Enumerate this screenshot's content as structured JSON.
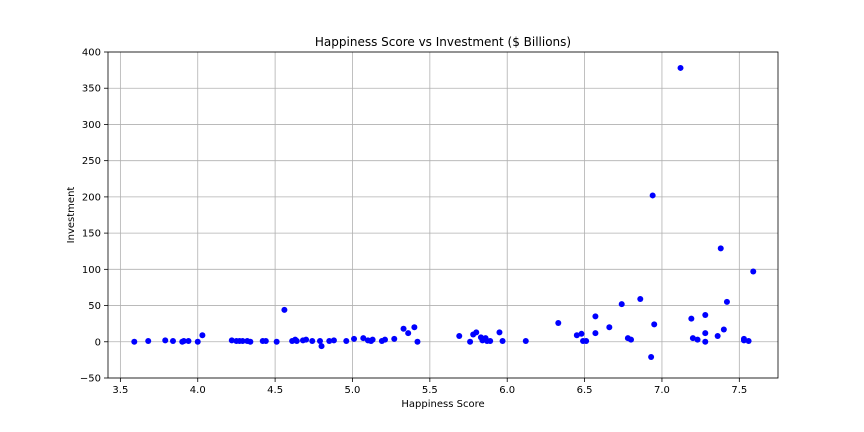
{
  "chart_data": {
    "type": "scatter",
    "title": "Happiness Score vs Investment ($ Billions)",
    "xlabel": "Happiness Score",
    "ylabel": "Investment",
    "xlim": [
      3.42,
      7.75
    ],
    "ylim": [
      -50,
      400
    ],
    "xticks": [
      3.5,
      4.0,
      4.5,
      5.0,
      5.5,
      6.0,
      6.5,
      7.0,
      7.5
    ],
    "xtick_labels": [
      "3.5",
      "4.0",
      "4.5",
      "5.0",
      "5.5",
      "6.0",
      "6.5",
      "7.0",
      "7.5"
    ],
    "yticks": [
      -50,
      0,
      50,
      100,
      150,
      200,
      250,
      300,
      350,
      400
    ],
    "ytick_labels": [
      "−50",
      "0",
      "50",
      "100",
      "150",
      "200",
      "250",
      "300",
      "350",
      "400"
    ],
    "grid": true,
    "marker_color": "#0000ff",
    "points": [
      [
        3.59,
        0
      ],
      [
        3.68,
        1
      ],
      [
        3.79,
        2
      ],
      [
        3.84,
        1
      ],
      [
        3.9,
        0
      ],
      [
        3.91,
        1
      ],
      [
        3.94,
        1
      ],
      [
        4.0,
        0
      ],
      [
        4.03,
        9
      ],
      [
        4.22,
        2
      ],
      [
        4.25,
        1
      ],
      [
        4.27,
        1
      ],
      [
        4.29,
        1
      ],
      [
        4.32,
        1
      ],
      [
        4.34,
        0
      ],
      [
        4.42,
        1
      ],
      [
        4.44,
        1
      ],
      [
        4.51,
        0
      ],
      [
        4.56,
        44
      ],
      [
        4.61,
        1
      ],
      [
        4.63,
        3
      ],
      [
        4.64,
        1
      ],
      [
        4.68,
        2
      ],
      [
        4.7,
        3
      ],
      [
        4.74,
        1
      ],
      [
        4.79,
        1
      ],
      [
        4.8,
        -6
      ],
      [
        4.85,
        1
      ],
      [
        4.88,
        2
      ],
      [
        4.96,
        1
      ],
      [
        5.01,
        4
      ],
      [
        5.07,
        5
      ],
      [
        5.1,
        2
      ],
      [
        5.12,
        1
      ],
      [
        5.13,
        3
      ],
      [
        5.19,
        1
      ],
      [
        5.21,
        3
      ],
      [
        5.27,
        4
      ],
      [
        5.33,
        18
      ],
      [
        5.36,
        12
      ],
      [
        5.4,
        20
      ],
      [
        5.42,
        0
      ],
      [
        5.69,
        8
      ],
      [
        5.76,
        0
      ],
      [
        5.78,
        10
      ],
      [
        5.8,
        13
      ],
      [
        5.83,
        6
      ],
      [
        5.84,
        2
      ],
      [
        5.86,
        5
      ],
      [
        5.87,
        1
      ],
      [
        5.89,
        1
      ],
      [
        5.95,
        13
      ],
      [
        5.97,
        1
      ],
      [
        6.12,
        1
      ],
      [
        6.33,
        26
      ],
      [
        6.45,
        9
      ],
      [
        6.48,
        11
      ],
      [
        6.49,
        1
      ],
      [
        6.51,
        1
      ],
      [
        6.57,
        35
      ],
      [
        6.57,
        12
      ],
      [
        6.66,
        20
      ],
      [
        6.74,
        52
      ],
      [
        6.78,
        5
      ],
      [
        6.8,
        3
      ],
      [
        6.86,
        59
      ],
      [
        6.93,
        -21
      ],
      [
        6.94,
        202
      ],
      [
        6.95,
        24
      ],
      [
        7.12,
        378
      ],
      [
        7.19,
        32
      ],
      [
        7.2,
        5
      ],
      [
        7.23,
        3
      ],
      [
        7.28,
        37
      ],
      [
        7.28,
        12
      ],
      [
        7.28,
        0
      ],
      [
        7.36,
        8
      ],
      [
        7.38,
        129
      ],
      [
        7.4,
        17
      ],
      [
        7.42,
        55
      ],
      [
        7.53,
        4
      ],
      [
        7.53,
        2
      ],
      [
        7.56,
        1
      ],
      [
        7.59,
        97
      ]
    ]
  }
}
